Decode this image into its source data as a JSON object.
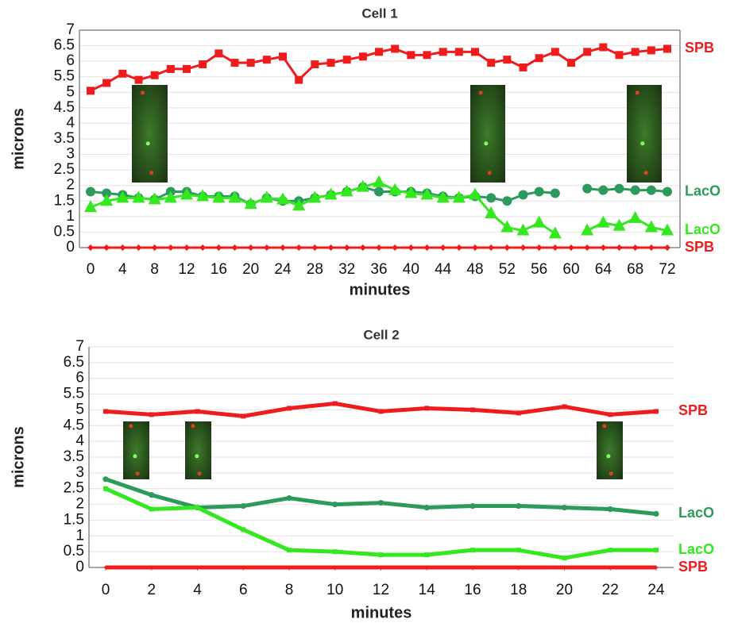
{
  "chart_data": [
    {
      "type": "line",
      "title": "Cell 1",
      "x_label": "minutes",
      "y_label": "microns",
      "x": [
        0,
        2,
        4,
        6,
        8,
        10,
        12,
        14,
        16,
        18,
        20,
        22,
        24,
        26,
        28,
        30,
        32,
        34,
        36,
        38,
        40,
        42,
        44,
        46,
        48,
        50,
        52,
        54,
        56,
        58,
        60,
        62,
        64,
        66,
        68,
        70,
        72
      ],
      "xlim": [
        0,
        72
      ],
      "xticks": [
        0,
        4,
        8,
        12,
        16,
        20,
        24,
        28,
        32,
        36,
        40,
        44,
        48,
        52,
        56,
        60,
        64,
        68,
        72
      ],
      "ylim": [
        0,
        7
      ],
      "yticks": [
        0,
        0.5,
        1,
        1.5,
        2,
        2.5,
        3,
        3.5,
        4,
        4.5,
        5,
        5.5,
        6,
        6.5,
        7
      ],
      "grid": true,
      "series": [
        {
          "name": "SPB",
          "color": "#ee1c1c",
          "marker": "square",
          "values": [
            5.05,
            5.3,
            5.6,
            5.4,
            5.55,
            5.75,
            5.75,
            5.9,
            6.25,
            5.95,
            5.95,
            6.05,
            6.15,
            5.4,
            5.9,
            5.95,
            6.05,
            6.15,
            6.3,
            6.4,
            6.2,
            6.2,
            6.3,
            6.3,
            6.3,
            5.95,
            6.05,
            5.8,
            6.1,
            6.3,
            5.95,
            6.3,
            6.45,
            6.2,
            6.3,
            6.35,
            6.4
          ]
        },
        {
          "name": "LacO",
          "color": "#2b9a5c",
          "marker": "circle",
          "values": [
            1.8,
            1.75,
            1.7,
            1.6,
            1.55,
            1.8,
            1.8,
            1.65,
            1.65,
            1.65,
            1.4,
            1.6,
            1.5,
            1.5,
            1.6,
            1.7,
            1.8,
            1.95,
            1.8,
            1.8,
            1.8,
            1.75,
            1.65,
            1.6,
            1.65,
            1.6,
            1.5,
            1.7,
            1.8,
            1.75,
            null,
            1.9,
            1.85,
            1.9,
            1.85,
            1.85,
            1.8
          ]
        },
        {
          "name": "LacO",
          "color": "#33e81e",
          "marker": "triangle",
          "values": [
            1.3,
            1.5,
            1.6,
            1.6,
            1.55,
            1.6,
            1.7,
            1.65,
            1.6,
            1.6,
            1.4,
            1.6,
            1.55,
            1.35,
            1.6,
            1.7,
            1.8,
            1.95,
            2.1,
            1.85,
            1.75,
            1.7,
            1.6,
            1.6,
            1.7,
            1.1,
            0.65,
            0.55,
            0.8,
            0.45,
            null,
            0.55,
            0.8,
            0.7,
            0.95,
            0.65,
            0.55
          ]
        },
        {
          "name": "SPB",
          "color": "#ee1c1c",
          "marker": "diamond",
          "values": [
            0,
            0,
            0,
            0,
            0,
            0,
            0,
            0,
            0,
            0,
            0,
            0,
            0,
            0,
            0,
            0,
            0,
            0,
            0,
            0,
            0,
            0,
            0,
            0,
            0,
            0,
            0,
            0,
            0,
            0,
            0,
            0,
            0,
            0,
            0,
            0,
            0
          ]
        }
      ]
    },
    {
      "type": "line",
      "title": "Cell 2",
      "x_label": "minutes",
      "y_label": "microns",
      "x": [
        0,
        2,
        4,
        6,
        8,
        10,
        12,
        14,
        16,
        18,
        20,
        22,
        24
      ],
      "xlim": [
        0,
        24
      ],
      "xticks": [
        0,
        2,
        4,
        6,
        8,
        10,
        12,
        14,
        16,
        18,
        20,
        22,
        24
      ],
      "ylim": [
        0,
        7
      ],
      "yticks": [
        0,
        0.5,
        1,
        1.5,
        2,
        2.5,
        3,
        3.5,
        4,
        4.5,
        5,
        5.5,
        6,
        6.5,
        7
      ],
      "grid": true,
      "series": [
        {
          "name": "SPB",
          "color": "#ee1c1c",
          "marker": "square",
          "values": [
            4.95,
            4.85,
            4.95,
            4.8,
            5.05,
            5.2,
            4.95,
            5.05,
            5.0,
            4.9,
            5.1,
            4.85,
            4.95
          ]
        },
        {
          "name": "LacO",
          "color": "#2b9a5c",
          "marker": "circle",
          "values": [
            2.8,
            2.3,
            1.9,
            1.95,
            2.2,
            2.0,
            2.05,
            1.9,
            1.95,
            1.95,
            1.9,
            1.85,
            1.7
          ]
        },
        {
          "name": "LacO",
          "color": "#33e81e",
          "marker": "square",
          "values": [
            2.5,
            1.85,
            1.9,
            1.2,
            0.55,
            0.5,
            0.4,
            0.4,
            0.55,
            0.55,
            0.3,
            0.55,
            0.55
          ]
        },
        {
          "name": "SPB",
          "color": "#ee1c1c",
          "marker": "diamond",
          "values": [
            0,
            0,
            0,
            0,
            0,
            0,
            0,
            0,
            0,
            0,
            0,
            0,
            0
          ]
        }
      ]
    }
  ]
}
